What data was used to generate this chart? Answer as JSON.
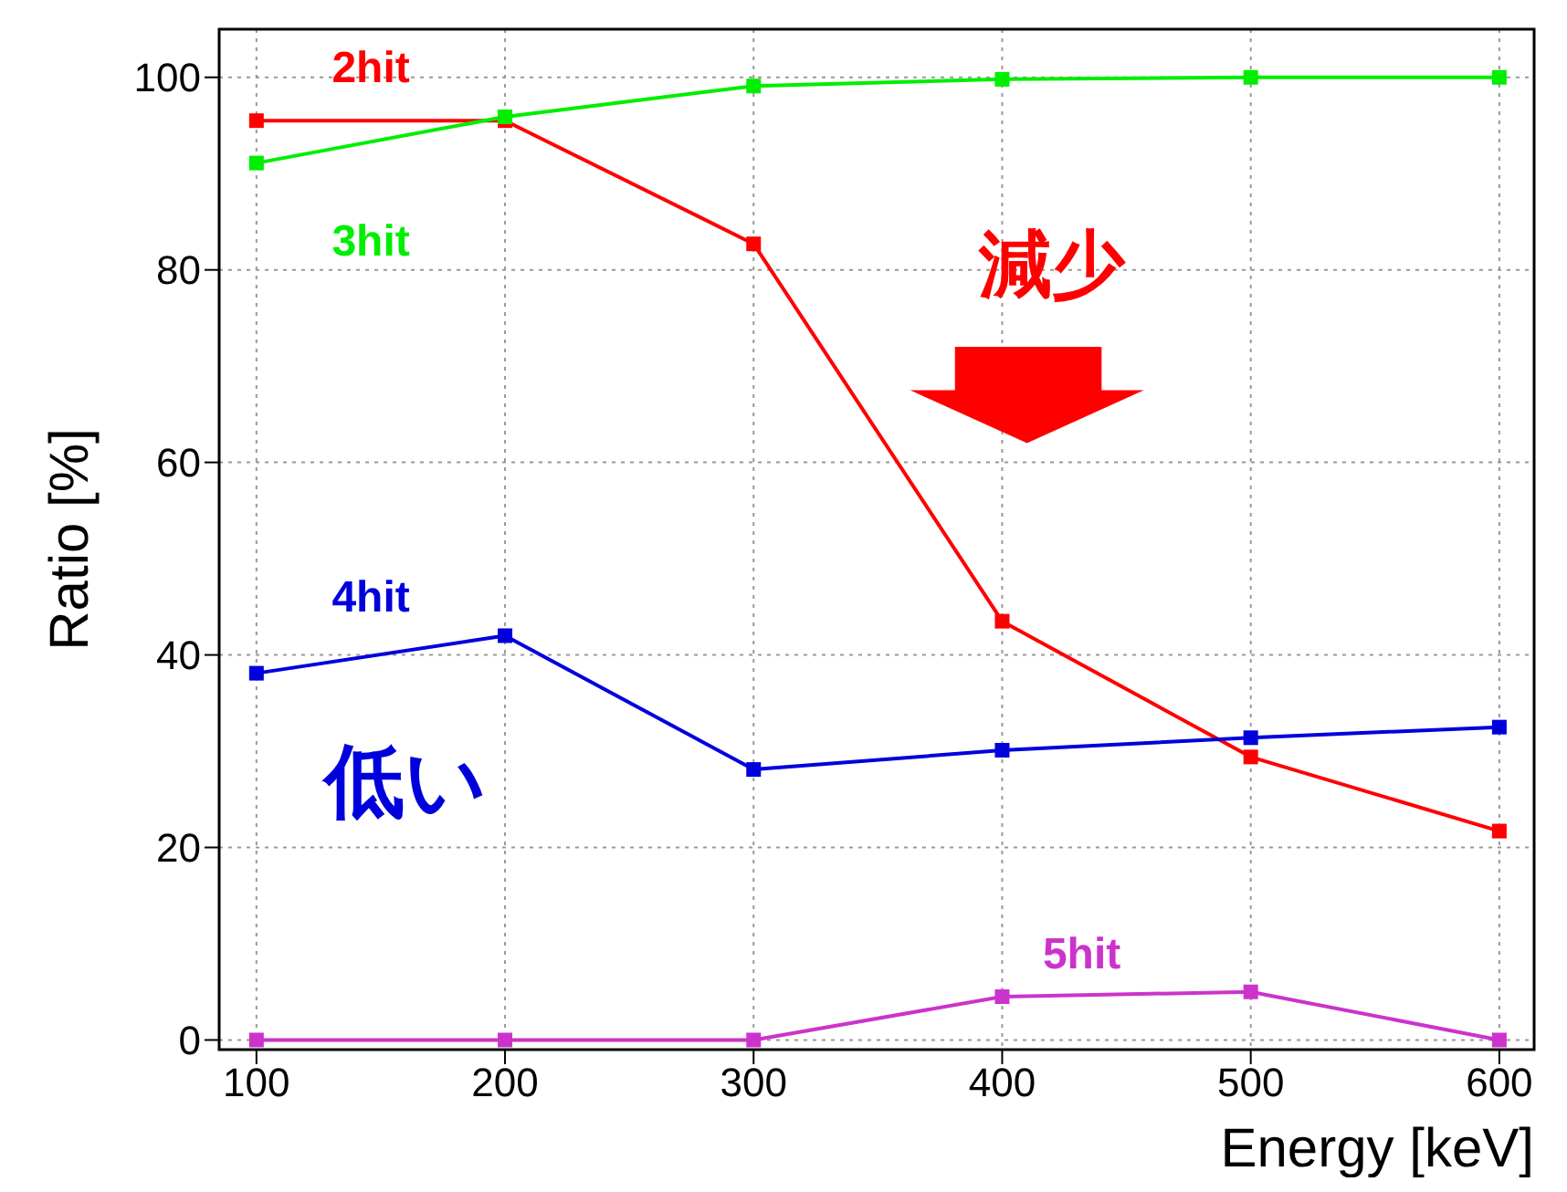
{
  "chart_data": {
    "type": "line",
    "xlabel": "Energy [keV]",
    "ylabel": "Ratio [%]",
    "x": [
      100,
      200,
      300,
      400,
      500,
      600
    ],
    "series": [
      {
        "name": "2hit",
        "color": "#ff0000",
        "values": [
          95.5,
          95.5,
          82.7,
          43.5,
          29.4,
          21.7
        ]
      },
      {
        "name": "3hit",
        "color": "#00ee00",
        "values": [
          91.1,
          95.9,
          99.1,
          99.8,
          100,
          100
        ]
      },
      {
        "name": "4hit",
        "color": "#0000dd",
        "values": [
          38.1,
          42,
          28.1,
          30.1,
          31.4,
          32.5
        ]
      },
      {
        "name": "5hit",
        "color": "#cc33cc",
        "values": [
          0,
          0,
          0,
          4.5,
          5,
          0
        ]
      }
    ],
    "annotations": [
      "減少",
      "低い"
    ],
    "xlim": [
      85,
      614
    ],
    "ylim": [
      -1,
      105
    ],
    "xticks": [
      100,
      200,
      300,
      400,
      500,
      600
    ],
    "yticks": [
      0,
      20,
      40,
      60,
      80,
      100
    ],
    "grid": true,
    "legend": false,
    "marker": "square",
    "line_style": "solid"
  }
}
